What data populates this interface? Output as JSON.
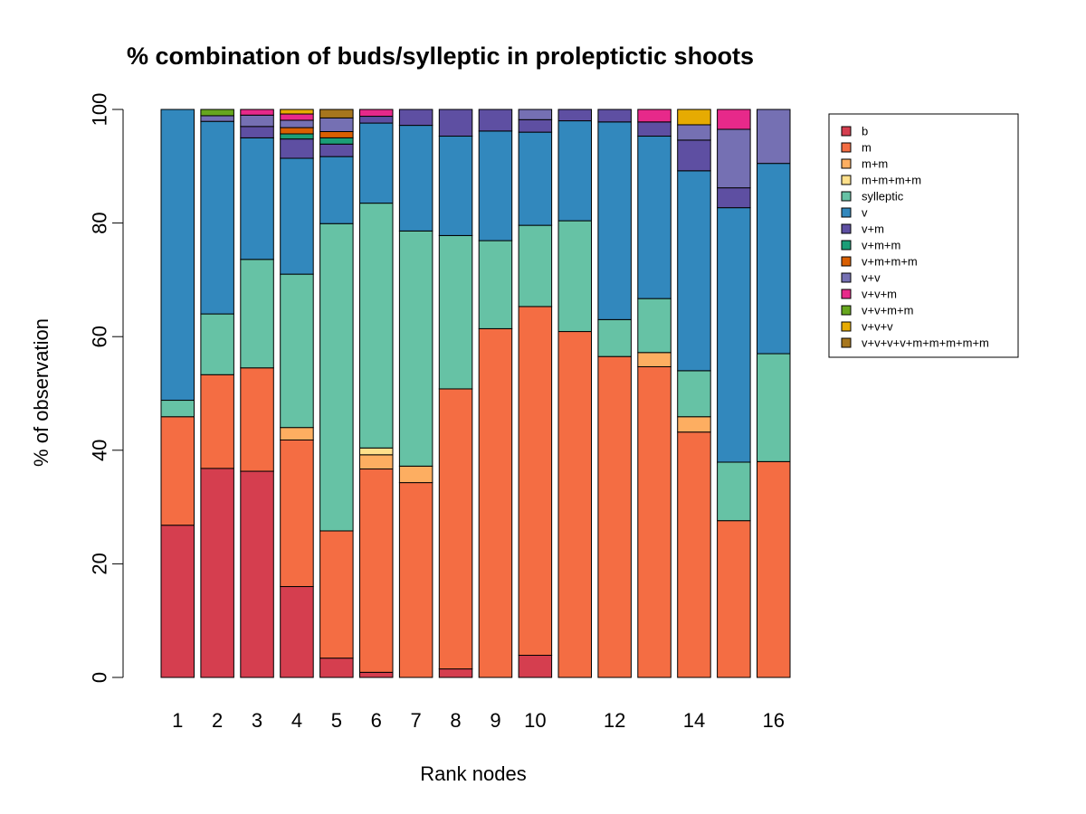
{
  "chart_data": {
    "type": "bar",
    "stacked": true,
    "title": "% combination of buds/sylleptic in proleptictic shoots",
    "xlabel": "Rank nodes",
    "ylabel": "% of observation",
    "ylim": [
      0,
      100
    ],
    "yticks": [
      0,
      20,
      40,
      60,
      80,
      100
    ],
    "categories": [
      "1",
      "2",
      "3",
      "4",
      "5",
      "6",
      "7",
      "8",
      "9",
      "10",
      "11",
      "12",
      "13",
      "14",
      "15",
      "16"
    ],
    "x_tick_labels": [
      "1",
      "2",
      "3",
      "4",
      "5",
      "6",
      "7",
      "8",
      "9",
      "10",
      "",
      "12",
      "",
      "14",
      "",
      "16"
    ],
    "legend_position": "top-right",
    "grid": false,
    "series": [
      {
        "name": "b",
        "color": "#D53E4F",
        "values": [
          26.8,
          36.8,
          36.3,
          16.0,
          3.4,
          0.9,
          0,
          1.5,
          0,
          3.9,
          0,
          0,
          0,
          0,
          0,
          0
        ]
      },
      {
        "name": "m",
        "color": "#F46D43",
        "values": [
          19.1,
          16.5,
          18.2,
          25.8,
          22.4,
          35.8,
          34.3,
          49.3,
          61.4,
          61.4,
          60.9,
          56.5,
          54.7,
          43.2,
          27.6,
          38.0
        ]
      },
      {
        "name": "m+m",
        "color": "#FDAE61",
        "values": [
          0,
          0,
          0,
          2.2,
          0,
          2.5,
          2.9,
          0,
          0,
          0,
          0,
          0,
          2.5,
          2.7,
          0,
          0
        ]
      },
      {
        "name": "m+m+m+m",
        "color": "#FEE08B",
        "values": [
          0,
          0,
          0,
          0,
          0,
          1.2,
          0,
          0,
          0,
          0,
          0,
          0,
          0,
          0,
          0,
          0
        ]
      },
      {
        "name": "sylleptic",
        "color": "#66C2A5",
        "values": [
          2.9,
          10.7,
          19.1,
          27.0,
          54.1,
          43.1,
          41.4,
          27.0,
          15.5,
          14.3,
          19.5,
          6.5,
          9.5,
          8.1,
          10.3,
          19.0
        ]
      },
      {
        "name": "v",
        "color": "#3288BD",
        "values": [
          51.2,
          33.9,
          21.4,
          20.4,
          11.8,
          14.1,
          18.6,
          17.5,
          19.3,
          16.4,
          17.6,
          34.8,
          28.6,
          35.2,
          44.8,
          33.5
        ]
      },
      {
        "name": "v+m",
        "color": "#5E4FA2",
        "values": [
          0,
          0,
          2.0,
          3.4,
          2.2,
          1.2,
          2.8,
          4.7,
          3.8,
          2.2,
          2.0,
          2.2,
          2.5,
          5.4,
          3.5,
          0
        ]
      },
      {
        "name": "v+m+m",
        "color": "#1B9E77",
        "values": [
          0,
          0,
          0,
          0.9,
          1.1,
          0,
          0,
          0,
          0,
          0,
          0,
          0,
          0,
          0,
          0,
          0
        ]
      },
      {
        "name": "v+m+m+m",
        "color": "#D95F02",
        "values": [
          0,
          0,
          0,
          1.1,
          1.1,
          0,
          0,
          0,
          0,
          0,
          0,
          0,
          0,
          0,
          0,
          0
        ]
      },
      {
        "name": "v+v",
        "color": "#7570B3",
        "values": [
          0,
          1.0,
          2.0,
          1.3,
          2.4,
          0,
          0,
          0,
          0,
          1.8,
          0,
          0,
          0,
          2.7,
          10.3,
          9.5
        ]
      },
      {
        "name": "v+v+m",
        "color": "#E7298A",
        "values": [
          0,
          0,
          1.0,
          1.1,
          0,
          1.2,
          0,
          0,
          0,
          0,
          0,
          0,
          2.2,
          0,
          3.5,
          0
        ]
      },
      {
        "name": "v+v+m+m",
        "color": "#66A61E",
        "values": [
          0,
          1.1,
          0,
          0,
          0,
          0,
          0,
          0,
          0,
          0,
          0,
          0,
          0,
          0,
          0,
          0
        ]
      },
      {
        "name": "v+v+v",
        "color": "#E6AB02",
        "values": [
          0,
          0,
          0,
          0.8,
          0,
          0,
          0,
          0,
          0,
          0,
          0,
          0,
          0,
          2.7,
          0,
          0
        ]
      },
      {
        "name": "v+v+v+v+m+m+m+m+m",
        "color": "#A6761D",
        "values": [
          0,
          0,
          0,
          0,
          1.5,
          0,
          0,
          0,
          0,
          0,
          0,
          0,
          0,
          0,
          0,
          0
        ]
      }
    ]
  }
}
